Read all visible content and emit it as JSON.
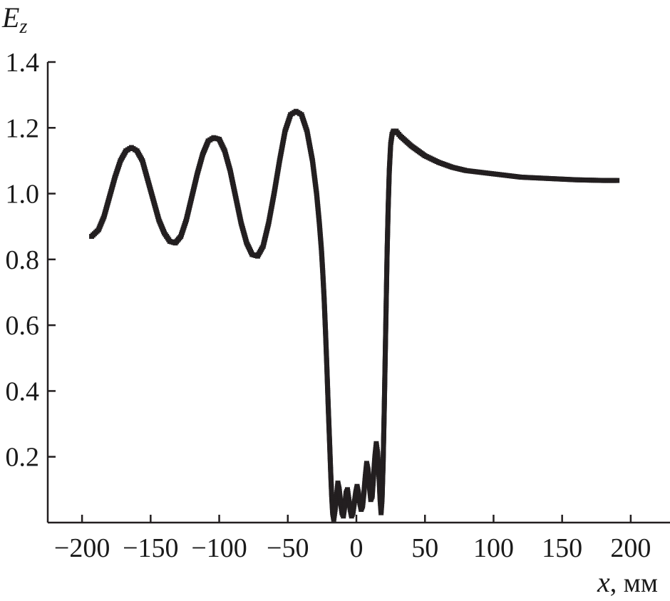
{
  "chart_data": {
    "type": "scatter",
    "title": "",
    "xlabel": "x",
    "xlabel_unit": ", мм",
    "ylabel": "E",
    "ylabel_sub": "z",
    "xlim": [
      -225,
      225
    ],
    "ylim": [
      0,
      1.4
    ],
    "xticks": [
      -200,
      -150,
      -100,
      -50,
      0,
      50,
      100,
      150,
      200
    ],
    "xtick_labels": [
      "−200",
      "−150",
      "−100",
      "−50",
      "0",
      "50",
      "100",
      "150",
      "200"
    ],
    "yticks": [
      0.2,
      0.4,
      0.6,
      0.8,
      1.0,
      1.2,
      1.4
    ],
    "ytick_labels": [
      "0.2",
      "0.4",
      "0.6",
      "0.8",
      "1.0",
      "1.2",
      "1.4"
    ],
    "grid": false,
    "legend": "none",
    "series": [
      {
        "style": "square-markers-with-line",
        "color": "#231f20",
        "points": [
          [
            -193,
            0.87
          ],
          [
            -188,
            0.89
          ],
          [
            -184,
            0.93
          ],
          [
            -180,
            0.99
          ],
          [
            -176,
            1.05
          ],
          [
            -172,
            1.1
          ],
          [
            -168,
            1.13
          ],
          [
            -164,
            1.14
          ],
          [
            -160,
            1.13
          ],
          [
            -156,
            1.1
          ],
          [
            -152,
            1.04
          ],
          [
            -148,
            0.98
          ],
          [
            -144,
            0.92
          ],
          [
            -140,
            0.88
          ],
          [
            -136,
            0.855
          ],
          [
            -132,
            0.85
          ],
          [
            -128,
            0.87
          ],
          [
            -124,
            0.92
          ],
          [
            -120,
            0.99
          ],
          [
            -116,
            1.06
          ],
          [
            -112,
            1.12
          ],
          [
            -108,
            1.16
          ],
          [
            -104,
            1.17
          ],
          [
            -100,
            1.165
          ],
          [
            -96,
            1.13
          ],
          [
            -92,
            1.07
          ],
          [
            -88,
            0.99
          ],
          [
            -84,
            0.91
          ],
          [
            -80,
            0.85
          ],
          [
            -76,
            0.815
          ],
          [
            -72,
            0.81
          ],
          [
            -68,
            0.84
          ],
          [
            -64,
            0.91
          ],
          [
            -60,
            1.0
          ],
          [
            -56,
            1.1
          ],
          [
            -52,
            1.19
          ],
          [
            -48,
            1.24
          ],
          [
            -44,
            1.25
          ],
          [
            -40,
            1.24
          ],
          [
            -36,
            1.19
          ],
          [
            -32,
            1.1
          ],
          [
            -29,
            1.0
          ],
          [
            -27,
            0.91
          ],
          [
            -25.5,
            0.83
          ],
          [
            -24.5,
            0.76
          ],
          [
            -23.5,
            0.68
          ],
          [
            -22.5,
            0.58
          ],
          [
            -21.5,
            0.47
          ],
          [
            -20.5,
            0.35
          ],
          [
            -19.5,
            0.24
          ],
          [
            -18.7,
            0.15
          ],
          [
            -18,
            0.08
          ],
          [
            -17.3,
            0.03
          ],
          [
            -16.5,
            0.01
          ],
          [
            -15.5,
            0.04
          ],
          [
            -14.5,
            0.08
          ],
          [
            -13.5,
            0.12
          ],
          [
            -12.5,
            0.1
          ],
          [
            -11.5,
            0.06
          ],
          [
            -10.5,
            0.03
          ],
          [
            -9.5,
            0.02
          ],
          [
            -8.5,
            0.05
          ],
          [
            -7.5,
            0.09
          ],
          [
            -6.5,
            0.1
          ],
          [
            -5.5,
            0.07
          ],
          [
            -4.5,
            0.04
          ],
          [
            -3.5,
            0.02
          ],
          [
            -2.5,
            0.03
          ],
          [
            -1.5,
            0.06
          ],
          [
            -0.5,
            0.09
          ],
          [
            0.5,
            0.11
          ],
          [
            1.5,
            0.09
          ],
          [
            2.5,
            0.06
          ],
          [
            3.5,
            0.04
          ],
          [
            4.5,
            0.05
          ],
          [
            5.5,
            0.09
          ],
          [
            6.5,
            0.14
          ],
          [
            7.5,
            0.18
          ],
          [
            8.5,
            0.16
          ],
          [
            9.5,
            0.11
          ],
          [
            10.5,
            0.07
          ],
          [
            11.5,
            0.08
          ],
          [
            12.5,
            0.14
          ],
          [
            13.5,
            0.2
          ],
          [
            14.5,
            0.24
          ],
          [
            15.5,
            0.21
          ],
          [
            16.5,
            0.14
          ],
          [
            17.3,
            0.07
          ],
          [
            18,
            0.03
          ],
          [
            18.7,
            0.07
          ],
          [
            19.5,
            0.18
          ],
          [
            20.3,
            0.34
          ],
          [
            21,
            0.5
          ],
          [
            21.7,
            0.66
          ],
          [
            22.4,
            0.82
          ],
          [
            23.2,
            0.96
          ],
          [
            24,
            1.07
          ],
          [
            25,
            1.15
          ],
          [
            26,
            1.18
          ],
          [
            27,
            1.19
          ],
          [
            29,
            1.19
          ],
          [
            32,
            1.175
          ],
          [
            36,
            1.16
          ],
          [
            40,
            1.145
          ],
          [
            45,
            1.13
          ],
          [
            50,
            1.115
          ],
          [
            60,
            1.095
          ],
          [
            70,
            1.08
          ],
          [
            80,
            1.07
          ],
          [
            90,
            1.065
          ],
          [
            100,
            1.06
          ],
          [
            110,
            1.055
          ],
          [
            120,
            1.05
          ],
          [
            130,
            1.048
          ],
          [
            140,
            1.046
          ],
          [
            150,
            1.044
          ],
          [
            160,
            1.042
          ],
          [
            170,
            1.041
          ],
          [
            180,
            1.04
          ],
          [
            190,
            1.04
          ]
        ]
      }
    ]
  }
}
